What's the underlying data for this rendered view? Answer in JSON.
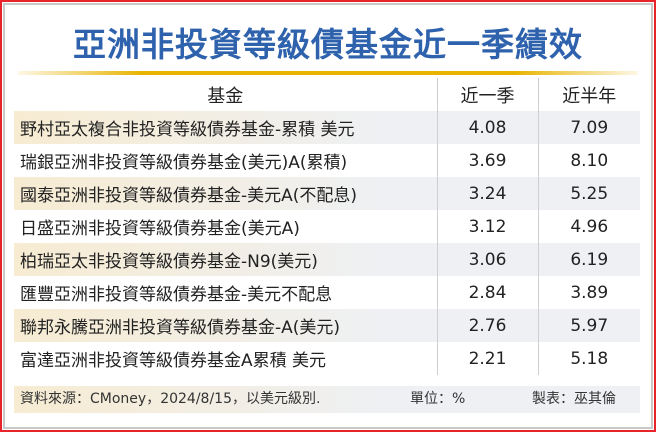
{
  "title": "亞洲非投資等級債基金近一季績效",
  "chart_data": {
    "type": "table",
    "title": "亞洲非投資等級債基金近一季績效",
    "columns": [
      "基金",
      "近一季",
      "近半年"
    ],
    "rows": [
      [
        "野村亞太複合非投資等級債券基金-累積 美元",
        "4.08",
        "7.09"
      ],
      [
        "瑞銀亞洲非投資等級債券基金(美元)A(累積)",
        "3.69",
        "8.10"
      ],
      [
        "國泰亞洲非投資等級債券基金-美元A(不配息)",
        "3.24",
        "5.25"
      ],
      [
        "日盛亞洲非投資等級債券基金(美元A)",
        "3.12",
        "4.96"
      ],
      [
        "柏瑞亞太非投資等級債券基金-N9(美元)",
        "3.06",
        "6.19"
      ],
      [
        "匯豐亞洲非投資等級債券基金-美元不配息",
        "2.84",
        "3.89"
      ],
      [
        "聯邦永騰亞洲非投資等級債券基金-A(美元)",
        "2.76",
        "5.97"
      ],
      [
        "富達亞洲非投資等級債券基金A累積 美元",
        "2.21",
        "5.18"
      ]
    ]
  },
  "footer": {
    "source": "資料來源：CMoney，2024/8/15，以美元級別.",
    "unit": "單位：%",
    "author": "製表：巫其倫"
  },
  "colors": {
    "title": "#2f62ad",
    "border": "#e8232a",
    "rule": "#e8b400"
  }
}
